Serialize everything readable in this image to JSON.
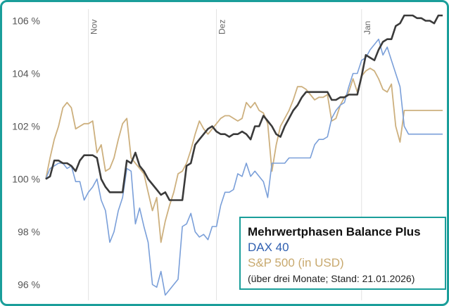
{
  "chart_data": {
    "type": "line",
    "title": "",
    "xlabel": "",
    "ylabel": "",
    "x_tick_labels": [
      "Nov",
      "Dez",
      "Jan"
    ],
    "y_ticks": [
      96,
      98,
      100,
      102,
      104,
      106
    ],
    "y_tick_labels": [
      "96 %",
      "98 %",
      "100 %",
      "102 %",
      "104 %",
      "106 %"
    ],
    "ylim": [
      95.4,
      106.6
    ],
    "grid": "vertical",
    "legend_placement": "bottom-right",
    "x_count": 94,
    "series": [
      {
        "name": "Mehrwertphasen Balance Plus",
        "color": "#3a3a3a",
        "values": [
          100.0,
          100.1,
          100.7,
          100.7,
          100.6,
          100.6,
          100.5,
          100.3,
          100.7,
          100.9,
          100.9,
          100.9,
          100.8,
          100.0,
          99.7,
          99.5,
          99.5,
          99.5,
          99.5,
          100.7,
          100.6,
          101.0,
          100.5,
          100.3,
          100.0,
          99.8,
          99.6,
          99.4,
          99.5,
          99.2,
          99.2,
          99.2,
          99.2,
          100.5,
          100.6,
          101.3,
          101.5,
          101.7,
          101.9,
          102.0,
          101.8,
          101.7,
          101.7,
          101.6,
          101.7,
          101.7,
          101.8,
          101.7,
          101.5,
          102.0,
          102.0,
          102.4,
          102.2,
          102.0,
          101.7,
          101.6,
          102.0,
          102.3,
          102.6,
          102.8,
          103.1,
          103.3,
          103.3,
          103.3,
          103.3,
          103.3,
          103.3,
          103.0,
          103.0,
          103.1,
          103.1,
          103.2,
          103.2,
          103.2,
          103.9,
          104.7,
          104.6,
          104.5,
          104.9,
          105.2,
          105.3,
          105.3,
          105.8,
          105.9,
          106.2,
          106.2,
          106.2,
          106.1,
          106.1,
          106.0,
          106.0,
          105.9,
          106.2,
          106.2
        ]
      },
      {
        "name": "DAX 40",
        "color": "#7a9fd9",
        "values": [
          100.0,
          100.4,
          100.5,
          100.6,
          100.6,
          100.4,
          100.5,
          99.9,
          99.9,
          99.2,
          99.5,
          99.7,
          100.0,
          99.2,
          98.8,
          97.6,
          98.0,
          98.8,
          99.3,
          100.4,
          100.3,
          98.3,
          98.9,
          98.2,
          97.6,
          96.0,
          95.9,
          96.5,
          95.6,
          95.8,
          96.0,
          96.2,
          98.2,
          98.3,
          98.7,
          98.0,
          97.8,
          97.9,
          97.7,
          98.2,
          98.2,
          99.0,
          99.5,
          99.5,
          99.6,
          100.2,
          100.1,
          100.6,
          100.1,
          100.3,
          100.1,
          99.9,
          99.3,
          100.6,
          100.6,
          100.6,
          100.6,
          100.8,
          100.8,
          100.8,
          100.8,
          100.8,
          100.8,
          101.3,
          101.5,
          101.5,
          101.6,
          102.3,
          102.6,
          102.8,
          102.9,
          103.5,
          104.0,
          104.0,
          104.5,
          104.6,
          104.9,
          105.1,
          105.3,
          104.7,
          105.0,
          104.5,
          104.0,
          103.5,
          102.0,
          101.7,
          101.7,
          101.7,
          101.7,
          101.7,
          101.7,
          101.7,
          101.7,
          101.7
        ]
      },
      {
        "name": "S&P 500 (in USD)",
        "color": "#cdb07e",
        "values": [
          100.0,
          100.8,
          101.5,
          102.0,
          102.7,
          102.9,
          102.7,
          101.9,
          102.0,
          102.1,
          102.1,
          102.2,
          101.0,
          101.3,
          100.3,
          100.4,
          100.8,
          101.5,
          102.1,
          102.3,
          100.8,
          100.6,
          100.4,
          100.2,
          99.5,
          98.8,
          99.3,
          97.6,
          98.4,
          99.0,
          99.5,
          100.2,
          100.3,
          100.6,
          101.1,
          101.7,
          102.2,
          101.9,
          101.7,
          101.9,
          102.1,
          102.3,
          102.4,
          102.4,
          102.3,
          102.2,
          102.3,
          102.9,
          102.7,
          102.9,
          102.6,
          102.5,
          102.1,
          100.3,
          101.3,
          102.0,
          102.3,
          102.6,
          103.0,
          103.5,
          103.5,
          103.4,
          103.2,
          103.0,
          103.1,
          103.1,
          103.2,
          102.2,
          102.3,
          102.8,
          103.1,
          103.3,
          103.8,
          103.3,
          103.9,
          104.1,
          104.2,
          104.1,
          103.8,
          103.4,
          103.3,
          103.6,
          102.0,
          101.4,
          102.6,
          102.6,
          102.6,
          102.6,
          102.6,
          102.6,
          102.6,
          102.6,
          102.6,
          102.6
        ]
      }
    ]
  },
  "legend": {
    "title": "Mehrwertphasen Balance Plus",
    "series_2": "DAX 40",
    "series_3": "S&P 500 (in USD)",
    "note": "(über drei Monate; Stand: 21.01.2026)",
    "color_2": "#2f5fb0",
    "color_3": "#c8a96e"
  }
}
